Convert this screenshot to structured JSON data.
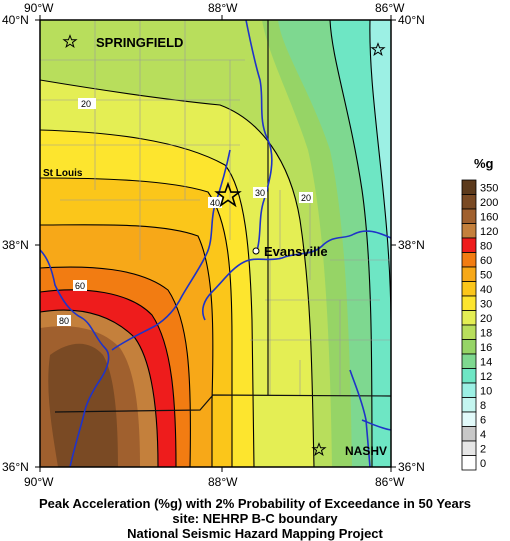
{
  "map": {
    "ticks": {
      "top_left": "90°W",
      "top_mid": "88°W",
      "top_right": "86°W",
      "bottom_left": "90°W",
      "bottom_mid": "88°W",
      "bottom_right": "86°W",
      "left_top": "40°N",
      "left_mid": "38°N",
      "left_bottom": "36°N",
      "right_top": "40°N",
      "right_mid": "38°N",
      "right_bottom": "36°N"
    },
    "cities": {
      "springfield": "SPRINGFIELD",
      "st_louis": "St Louis",
      "evansville": "Evansville",
      "nashville": "NASHV"
    },
    "contour_labels": {
      "c20_a": "20",
      "c20_b": "20",
      "c30": "30",
      "c40": "40",
      "c60": "60",
      "c80": "80"
    }
  },
  "legend": {
    "title": "%g",
    "items": [
      {
        "label": "350",
        "color": "#5c3a1c"
      },
      {
        "label": "200",
        "color": "#7a4a24"
      },
      {
        "label": "160",
        "color": "#a0602e"
      },
      {
        "label": "120",
        "color": "#c4803c"
      },
      {
        "label": "80",
        "color": "#ee1c1c"
      },
      {
        "label": "60",
        "color": "#f27c12"
      },
      {
        "label": "50",
        "color": "#f7a818"
      },
      {
        "label": "40",
        "color": "#fbc61a"
      },
      {
        "label": "30",
        "color": "#fde52e"
      },
      {
        "label": "20",
        "color": "#e4ee54"
      },
      {
        "label": "18",
        "color": "#b8de5c"
      },
      {
        "label": "16",
        "color": "#96d466"
      },
      {
        "label": "14",
        "color": "#7ed890"
      },
      {
        "label": "12",
        "color": "#6ee6c4"
      },
      {
        "label": "10",
        "color": "#9cf0e4"
      },
      {
        "label": "8",
        "color": "#c4f6f0"
      },
      {
        "label": "6",
        "color": "#e2fafa"
      },
      {
        "label": "4",
        "color": "#c8c8c8"
      },
      {
        "label": "2",
        "color": "#e6e6e6"
      },
      {
        "label": "0",
        "color": "#ffffff"
      }
    ]
  },
  "caption": {
    "line1": "Peak Acceleration (%g) with 2% Probability of Exceedance in 50 Years",
    "line2": "site: NEHRP B-C boundary",
    "line3": "National Seismic Hazard Mapping Project"
  }
}
